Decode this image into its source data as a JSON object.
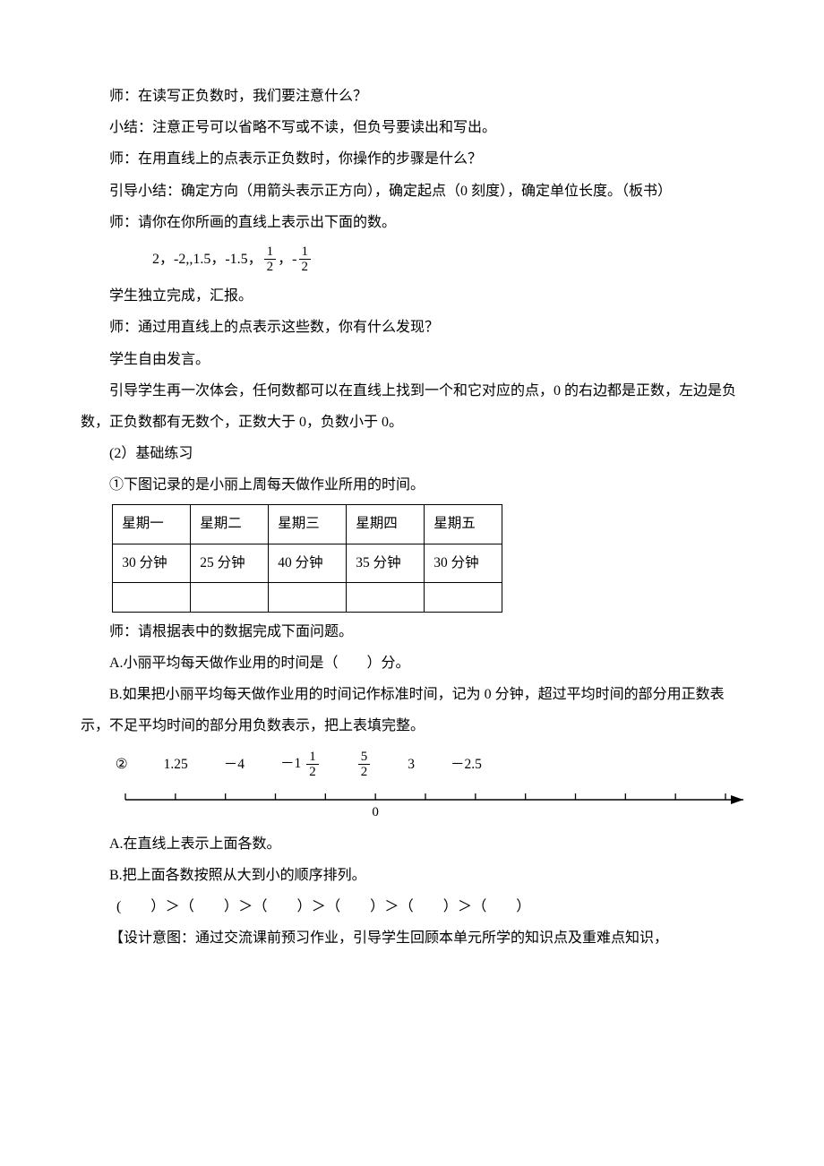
{
  "p1": "师：在读写正负数时，我们要注意什么？",
  "p2": "小结：注意正号可以省略不写或不读，但负号要读出和写出。",
  "p3": "师：在用直线上的点表示正负数时，你操作的步骤是什么？",
  "p4": "引导小结：确定方向（用箭头表示正方向），确定起点（0 刻度），确定单位长度。（板书）",
  "p5": "师：请你在你所画的直线上表示出下面的数。",
  "formula_prefix": "2，-2,,1.5，-1.5，",
  "frac1_num": "1",
  "frac1_den": "2",
  "formula_mid": "，-",
  "frac2_num": "1",
  "frac2_den": "2",
  "p6": "学生独立完成，汇报。",
  "p7": "师：通过用直线上的点表示这些数，你有什么发现？",
  "p8": "学生自由发言。",
  "p9": "引导学生再一次体会，任何数都可以在直线上找到一个和它对应的点，0 的右边都是正数，左边是负数，正负数都有无数个，正数大于 0，负数小于 0。",
  "p10": "(2）基础练习",
  "p11": "①下图记录的是小丽上周每天做作业所用的时间。",
  "table": {
    "headers": [
      "星期一",
      "星期二",
      "星期三",
      "星期四",
      "星期五"
    ],
    "row1": [
      "30 分钟",
      "25 分钟",
      "40 分钟",
      "35 分钟",
      "30 分钟"
    ],
    "row2": [
      "",
      "",
      "",
      "",
      ""
    ]
  },
  "p12": "师：请根据表中的数据完成下面问题。",
  "p13": "A.小丽平均每天做作业用的时间是（　　）分。",
  "p14": "B.如果把小丽平均每天做作业用的时间记作标准时间，记为 0 分钟，超过平均时间的部分用正数表示，不足平均时间的部分用负数表示，把上表填完整。",
  "q2_label": "②",
  "q2_items": {
    "a": "1.25",
    "b": "－4",
    "c_prefix": "－1",
    "c_num": "1",
    "c_den": "2",
    "d_num": "5",
    "d_den": "2",
    "e": "3",
    "f": "－2.5"
  },
  "numberline": {
    "zero_label": "0",
    "tick_count_left": 5,
    "tick_count_right": 7,
    "line_color": "#000"
  },
  "p15": "A.在直线上表示上面各数。",
  "p16": "B.把上面各数按照从大到小的顺序排列。",
  "p17": "(　　）＞（　　）＞（　　）＞（　　）＞（　　）＞（　　）",
  "p18": "【设计意图：通过交流课前预习作业，引导学生回顾本单元所学的知识点及重难点知识，"
}
